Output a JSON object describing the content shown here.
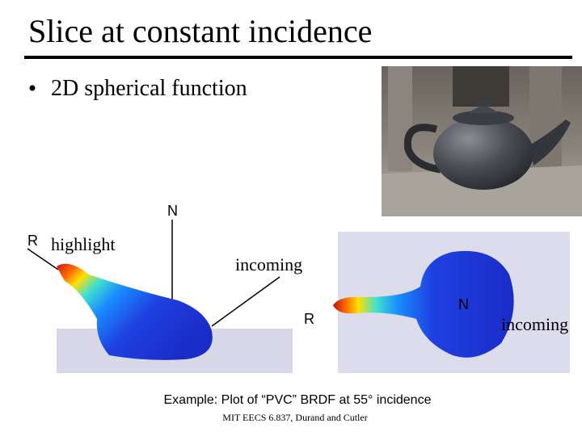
{
  "title": "Slice at constant incidence",
  "bullets": [
    "2D spherical function"
  ],
  "figure_left": {
    "labels": [
      "N",
      "R",
      "highlight",
      "incoming"
    ]
  },
  "figure_right": {
    "labels": [
      "N",
      "R",
      "incoming"
    ]
  },
  "caption": "Example: Plot of “PVC” BRDF at 55° incidence",
  "footer": "MIT EECS 6.837, Durand and Cutler"
}
